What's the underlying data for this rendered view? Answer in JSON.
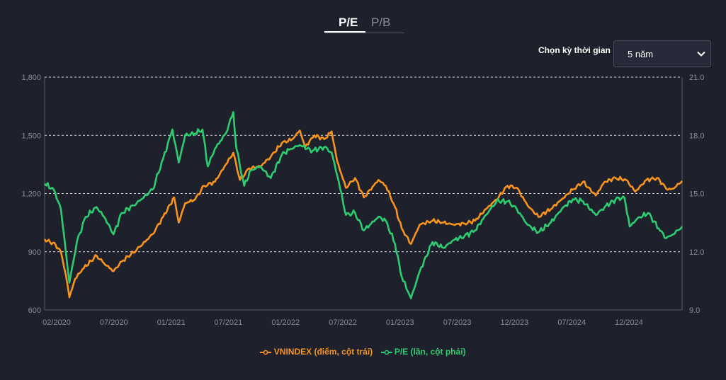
{
  "tabs": [
    {
      "label": "P/E",
      "active": true
    },
    {
      "label": "P/B",
      "active": false
    }
  ],
  "period": {
    "label": "Chọn kỳ thời gian",
    "selected": "5 năm"
  },
  "colors": {
    "vnindex": "#f7931e",
    "pe": "#2ecc71",
    "grid": "#d9d9d9",
    "axis_text": "#8a8d99",
    "background": "#1e202b"
  },
  "chart_data": {
    "type": "line",
    "x_ticks": [
      "02/2020",
      "07/2020",
      "01/2021",
      "07/2021",
      "01/2022",
      "07/2022",
      "01/2023",
      "07/2023",
      "12/2023",
      "07/2024",
      "12/2024"
    ],
    "x_range": [
      "2020-01-15",
      "2024-12-20"
    ],
    "y_left": {
      "ticks": [
        "600",
        "900",
        "1,200",
        "1,500",
        "1,800"
      ],
      "range": [
        600,
        1800
      ]
    },
    "y_right": {
      "ticks": [
        "9.0",
        "12.0",
        "15.0",
        "18.0",
        "21.0"
      ],
      "range": [
        9,
        21
      ]
    },
    "grid": "horizontal dashed",
    "legend_position": "bottom-center",
    "series": [
      {
        "name": "VNINDEX (điểm, cột trái)",
        "axis": "left",
        "points": [
          [
            "2020-01-15",
            965
          ],
          [
            "2020-02-15",
            935
          ],
          [
            "2020-03-01",
            900
          ],
          [
            "2020-03-15",
            780
          ],
          [
            "2020-03-25",
            665
          ],
          [
            "2020-04-10",
            760
          ],
          [
            "2020-05-01",
            810
          ],
          [
            "2020-06-10",
            880
          ],
          [
            "2020-07-01",
            840
          ],
          [
            "2020-07-28",
            800
          ],
          [
            "2020-08-20",
            850
          ],
          [
            "2020-10-01",
            910
          ],
          [
            "2020-11-15",
            990
          ],
          [
            "2020-12-15",
            1080
          ],
          [
            "2021-01-15",
            1180
          ],
          [
            "2021-01-28",
            1050
          ],
          [
            "2021-02-15",
            1150
          ],
          [
            "2021-03-15",
            1170
          ],
          [
            "2021-04-10",
            1240
          ],
          [
            "2021-05-10",
            1260
          ],
          [
            "2021-06-10",
            1350
          ],
          [
            "2021-07-01",
            1410
          ],
          [
            "2021-07-20",
            1270
          ],
          [
            "2021-08-15",
            1330
          ],
          [
            "2021-09-15",
            1340
          ],
          [
            "2021-10-15",
            1390
          ],
          [
            "2021-11-15",
            1460
          ],
          [
            "2021-12-15",
            1480
          ],
          [
            "2022-01-05",
            1525
          ],
          [
            "2022-01-20",
            1440
          ],
          [
            "2022-02-15",
            1500
          ],
          [
            "2022-03-15",
            1480
          ],
          [
            "2022-04-05",
            1520
          ],
          [
            "2022-04-20",
            1370
          ],
          [
            "2022-05-15",
            1230
          ],
          [
            "2022-06-10",
            1280
          ],
          [
            "2022-07-05",
            1180
          ],
          [
            "2022-08-15",
            1270
          ],
          [
            "2022-09-05",
            1240
          ],
          [
            "2022-10-01",
            1130
          ],
          [
            "2022-10-20",
            1020
          ],
          [
            "2022-11-15",
            940
          ],
          [
            "2022-12-10",
            1040
          ],
          [
            "2023-01-15",
            1060
          ],
          [
            "2023-02-15",
            1050
          ],
          [
            "2023-03-15",
            1040
          ],
          [
            "2023-04-15",
            1045
          ],
          [
            "2023-05-15",
            1060
          ],
          [
            "2023-06-15",
            1120
          ],
          [
            "2023-07-15",
            1170
          ],
          [
            "2023-08-15",
            1240
          ],
          [
            "2023-09-10",
            1230
          ],
          [
            "2023-10-10",
            1140
          ],
          [
            "2023-11-10",
            1080
          ],
          [
            "2023-12-15",
            1120
          ],
          [
            "2024-01-15",
            1170
          ],
          [
            "2024-02-15",
            1220
          ],
          [
            "2024-03-15",
            1260
          ],
          [
            "2024-04-20",
            1190
          ],
          [
            "2024-05-15",
            1260
          ],
          [
            "2024-06-15",
            1280
          ],
          [
            "2024-07-15",
            1270
          ],
          [
            "2024-08-10",
            1210
          ],
          [
            "2024-09-10",
            1270
          ],
          [
            "2024-10-10",
            1280
          ],
          [
            "2024-11-10",
            1220
          ],
          [
            "2024-11-25",
            1225
          ],
          [
            "2024-12-20",
            1265
          ]
        ]
      },
      {
        "name": "P/E (lần, cột phải)",
        "axis": "right",
        "points": [
          [
            "2020-01-15",
            15.5
          ],
          [
            "2020-02-10",
            15.2
          ],
          [
            "2020-03-01",
            14.2
          ],
          [
            "2020-03-15",
            12.0
          ],
          [
            "2020-03-25",
            10.4
          ],
          [
            "2020-04-15",
            12.5
          ],
          [
            "2020-05-10",
            13.8
          ],
          [
            "2020-06-10",
            14.3
          ],
          [
            "2020-07-01",
            13.8
          ],
          [
            "2020-07-28",
            12.9
          ],
          [
            "2020-08-20",
            14.0
          ],
          [
            "2020-10-01",
            14.5
          ],
          [
            "2020-11-15",
            15.2
          ],
          [
            "2020-12-15",
            16.8
          ],
          [
            "2021-01-10",
            18.3
          ],
          [
            "2021-01-28",
            16.6
          ],
          [
            "2021-02-15",
            18.0
          ],
          [
            "2021-03-15",
            18.1
          ],
          [
            "2021-04-05",
            18.3
          ],
          [
            "2021-04-20",
            16.4
          ],
          [
            "2021-05-10",
            17.3
          ],
          [
            "2021-06-10",
            18.1
          ],
          [
            "2021-07-01",
            19.2
          ],
          [
            "2021-07-10",
            17.3
          ],
          [
            "2021-08-01",
            15.4
          ],
          [
            "2021-08-20",
            16.2
          ],
          [
            "2021-09-15",
            16.4
          ],
          [
            "2021-10-15",
            15.8
          ],
          [
            "2021-11-15",
            17.0
          ],
          [
            "2021-12-10",
            17.3
          ],
          [
            "2022-01-05",
            17.5
          ],
          [
            "2022-02-10",
            17.2
          ],
          [
            "2022-03-15",
            17.4
          ],
          [
            "2022-04-05",
            17.1
          ],
          [
            "2022-04-25",
            15.6
          ],
          [
            "2022-05-15",
            13.9
          ],
          [
            "2022-06-10",
            14.0
          ],
          [
            "2022-07-05",
            13.1
          ],
          [
            "2022-08-15",
            13.8
          ],
          [
            "2022-09-05",
            13.6
          ],
          [
            "2022-10-01",
            12.4
          ],
          [
            "2022-10-20",
            10.7
          ],
          [
            "2022-11-15",
            9.6
          ],
          [
            "2022-12-10",
            11.0
          ],
          [
            "2023-01-15",
            12.5
          ],
          [
            "2023-02-15",
            12.2
          ],
          [
            "2023-03-15",
            12.6
          ],
          [
            "2023-04-15",
            12.8
          ],
          [
            "2023-05-15",
            13.1
          ],
          [
            "2023-06-15",
            13.9
          ],
          [
            "2023-07-15",
            14.6
          ],
          [
            "2023-08-15",
            14.6
          ],
          [
            "2023-09-10",
            14.2
          ],
          [
            "2023-10-10",
            13.4
          ],
          [
            "2023-11-10",
            13.0
          ],
          [
            "2023-12-15",
            13.5
          ],
          [
            "2024-01-15",
            14.2
          ],
          [
            "2024-02-15",
            14.7
          ],
          [
            "2024-03-15",
            14.6
          ],
          [
            "2024-04-20",
            13.9
          ],
          [
            "2024-05-15",
            14.3
          ],
          [
            "2024-06-15",
            14.7
          ],
          [
            "2024-07-10",
            14.8
          ],
          [
            "2024-07-25",
            13.3
          ],
          [
            "2024-08-15",
            13.7
          ],
          [
            "2024-09-15",
            14.0
          ],
          [
            "2024-10-15",
            13.2
          ],
          [
            "2024-11-05",
            12.7
          ],
          [
            "2024-11-25",
            12.9
          ],
          [
            "2024-12-20",
            13.3
          ]
        ]
      }
    ]
  }
}
